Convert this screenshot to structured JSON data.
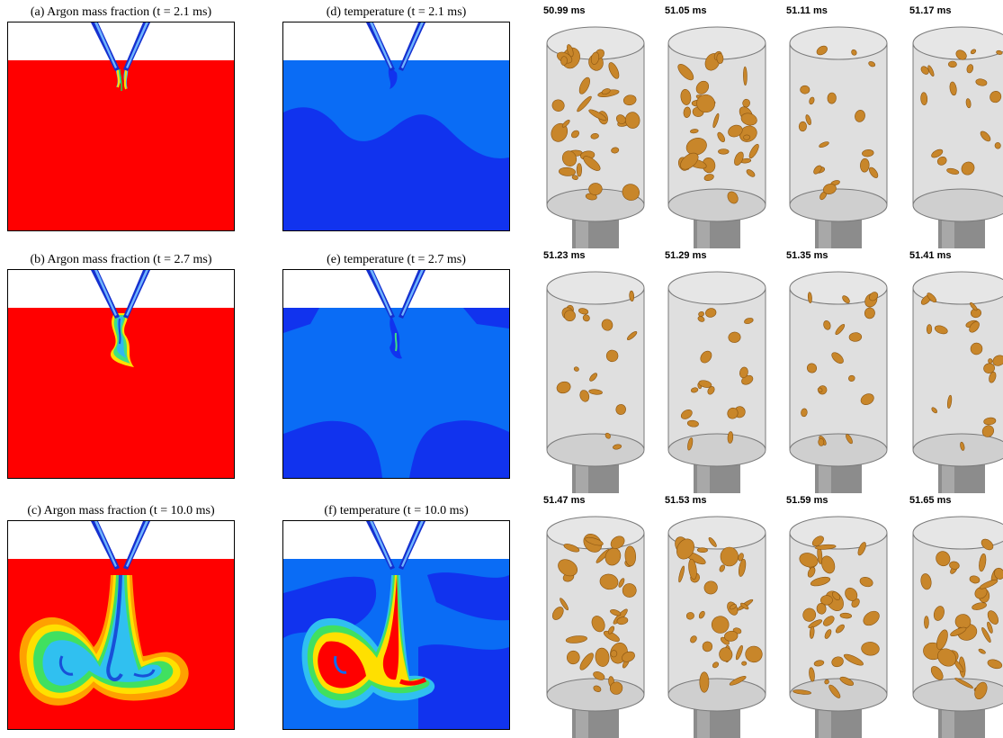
{
  "panels": {
    "a": "(a) Argon mass fraction (t = 2.1 ms)",
    "b": "(b) Argon mass fraction (t = 2.7 ms)",
    "c": "(c) Argon mass fraction (t = 10.0 ms)",
    "d": "(d) temperature (t = 2.1 ms)",
    "e": "(e) temperature (t = 2.7 ms)",
    "f": "(f) temperature (t = 10.0 ms)"
  },
  "snapshots": {
    "times": [
      [
        "50.99 ms",
        "51.05 ms",
        "51.11 ms",
        "51.17 ms"
      ],
      [
        "51.23 ms",
        "51.29 ms",
        "51.35 ms",
        "51.41 ms"
      ],
      [
        "51.47 ms",
        "51.53 ms",
        "51.59 ms",
        "51.65 ms"
      ]
    ]
  },
  "colors": {
    "argon_bulk": "#ff0000",
    "temperature_bulk": "#1133ee",
    "temperature_light": "#0a6cf5",
    "nozzle": "#1530d0",
    "isosurface": "#c8862a",
    "cylinder": "#d9d9d9",
    "pipe": "#8c8c8c"
  }
}
